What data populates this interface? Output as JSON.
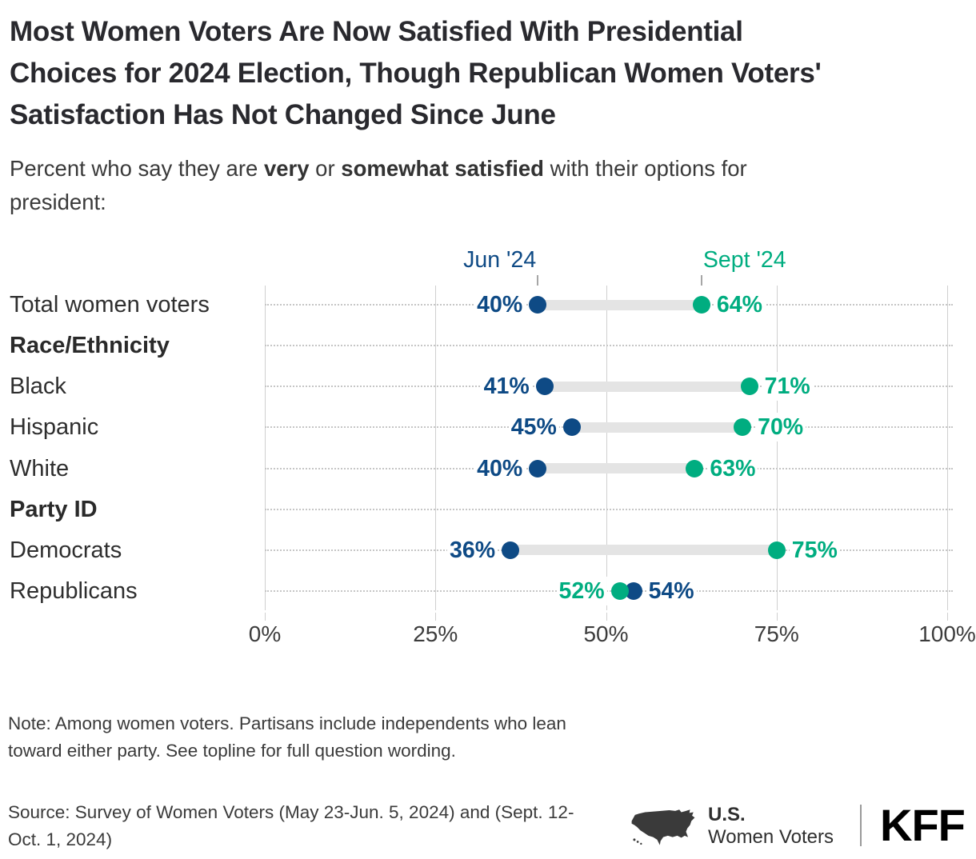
{
  "header": {
    "title_lines": [
      "Most Women Voters Are Now Satisfied With Presidential",
      "Choices for 2024 Election, Though Republican Women Voters'",
      "Satisfaction Has Not Changed Since June"
    ],
    "subtitle_parts": [
      "Percent who say they are ",
      "very",
      " or ",
      "somewhat satisfied",
      " with their options for",
      "president:"
    ]
  },
  "chart_data": {
    "type": "dumbbell",
    "x_axis": {
      "range": [
        0,
        100
      ],
      "ticks": [
        0,
        25,
        50,
        75,
        100
      ],
      "tick_labels": [
        "0%",
        "25%",
        "50%",
        "75%",
        "100%"
      ],
      "grid": true
    },
    "series": [
      {
        "name": "Jun '24",
        "key": "jun",
        "color": "#0e4a85"
      },
      {
        "name": "Sept '24",
        "key": "sept",
        "color": "#00ad80"
      }
    ],
    "value_suffix": "%",
    "rows": [
      {
        "label": "Total women voters",
        "type": "data",
        "values": {
          "jun": 40,
          "sept": 64
        }
      },
      {
        "label": "Race/Ethnicity",
        "type": "header"
      },
      {
        "label": "Black",
        "type": "data",
        "values": {
          "jun": 41,
          "sept": 71
        }
      },
      {
        "label": "Hispanic",
        "type": "data",
        "values": {
          "jun": 45,
          "sept": 70
        }
      },
      {
        "label": "White",
        "type": "data",
        "values": {
          "jun": 40,
          "sept": 63
        }
      },
      {
        "label": "Party ID",
        "type": "header"
      },
      {
        "label": "Democrats",
        "type": "data",
        "values": {
          "jun": 36,
          "sept": 75
        }
      },
      {
        "label": "Republicans",
        "type": "data",
        "values": {
          "jun": 54,
          "sept": 52
        }
      }
    ]
  },
  "colors": {
    "jun": "#0e4a85",
    "sept": "#00ad80",
    "grid": "#cfcfcf",
    "dotted": "#c6c6c6",
    "connector": "#e4e4e4"
  },
  "footer": {
    "note": "Note: Among women voters. Partisans include independents who lean toward either party. See topline for full question wording.",
    "source": "Source: Survey of Women Voters (May 23-Jun. 5, 2024) and (Sept. 12-Oct. 1, 2024)",
    "branding": {
      "program_top": "U.S.",
      "program_bottom": "Women Voters",
      "logo": "KFF"
    }
  }
}
